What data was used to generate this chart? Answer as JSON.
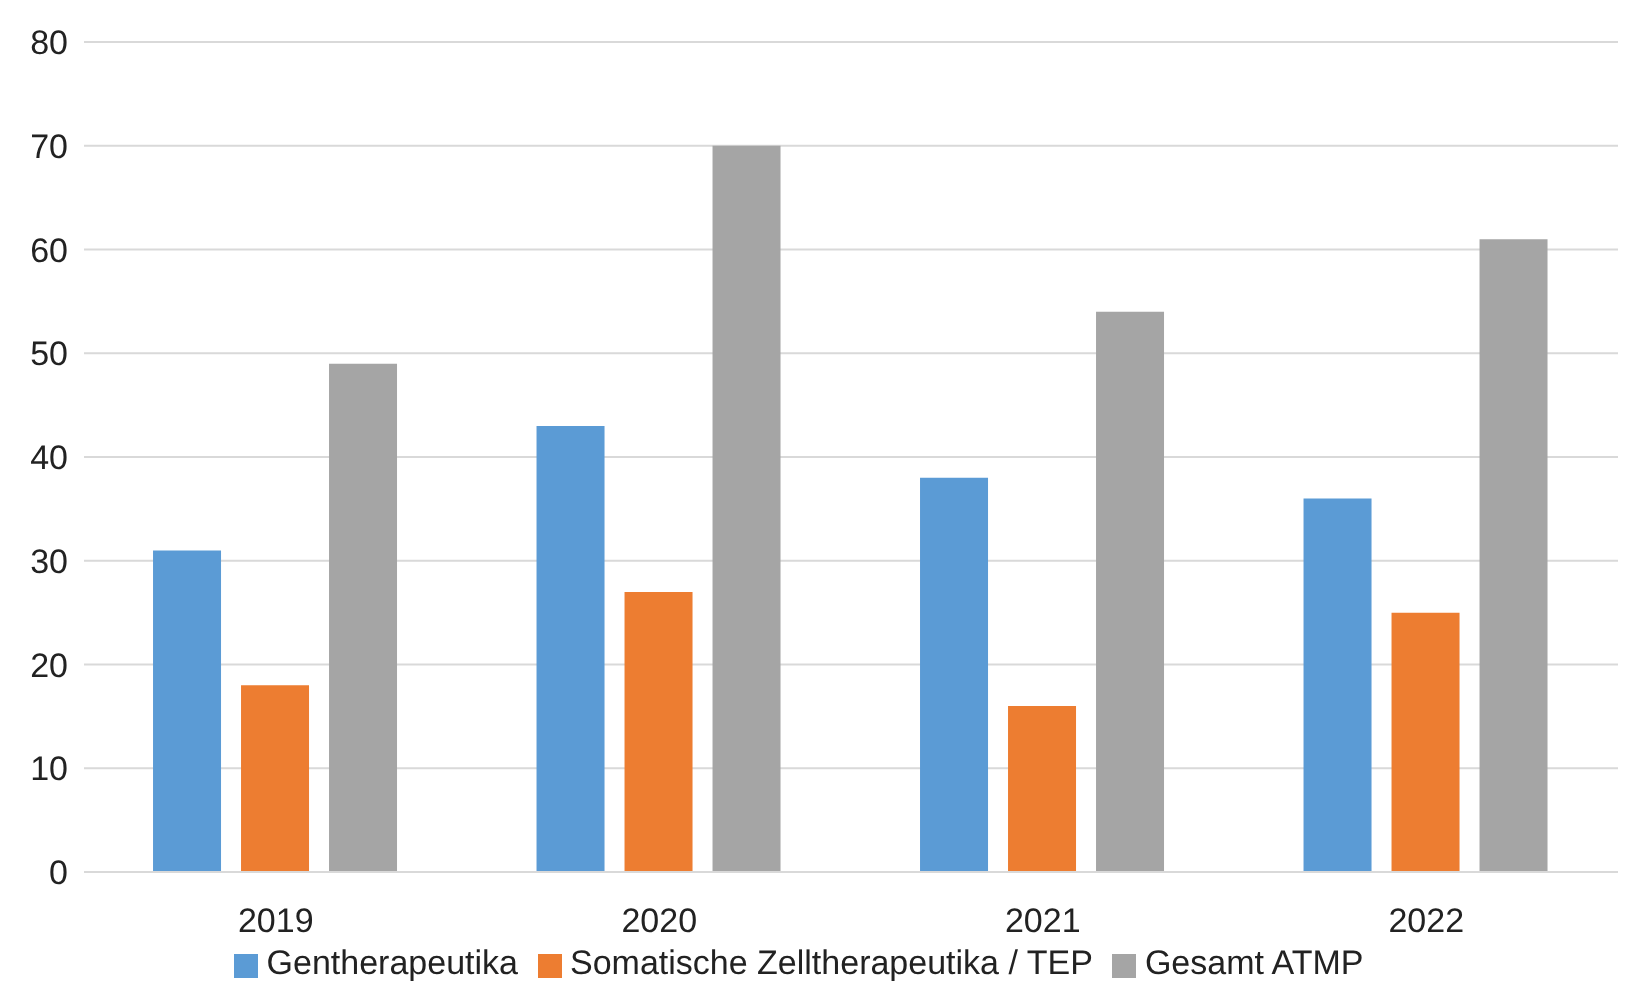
{
  "chart_data": {
    "type": "bar",
    "categories": [
      "2019",
      "2020",
      "2021",
      "2022"
    ],
    "series": [
      {
        "name": "Gentherapeutika",
        "color": "#5b9bd5",
        "values": [
          31,
          43,
          38,
          36
        ]
      },
      {
        "name": "Somatische Zelltherapeutika / TEP",
        "color": "#ed7d31",
        "values": [
          18,
          27,
          16,
          25
        ]
      },
      {
        "name": "Gesamt ATMP",
        "color": "#a5a5a5",
        "values": [
          49,
          70,
          54,
          61
        ]
      }
    ],
    "ylim": [
      0,
      80
    ],
    "yticks": [
      0,
      10,
      20,
      30,
      40,
      50,
      60,
      70,
      80
    ],
    "grid": "y",
    "legend": "bottom"
  }
}
